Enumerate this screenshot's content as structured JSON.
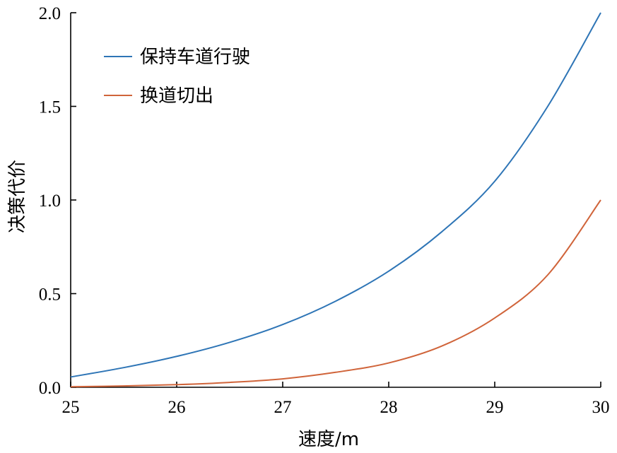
{
  "chart_data": {
    "type": "line",
    "title": "",
    "xlabel": "速度/m",
    "ylabel": "决策代价",
    "xlim": [
      25,
      30
    ],
    "ylim": [
      0,
      2
    ],
    "xticks": [
      25,
      26,
      27,
      28,
      29,
      30
    ],
    "xtick_labels": [
      "25",
      "26",
      "27",
      "28",
      "29",
      "30"
    ],
    "yticks": [
      0,
      0.5,
      1,
      1.5,
      2
    ],
    "ytick_labels": [
      "0.0",
      "0.5",
      "1.0",
      "1.5",
      "2.0"
    ],
    "grid": false,
    "legend_position": "top-left",
    "x": [
      25,
      25.5,
      26,
      26.5,
      27,
      27.5,
      28,
      28.5,
      29,
      29.5,
      30
    ],
    "series": [
      {
        "name": "保持车道行驶",
        "color": "#2e75b6",
        "values": [
          0.055,
          0.105,
          0.165,
          0.24,
          0.335,
          0.46,
          0.62,
          0.83,
          1.1,
          1.5,
          2.0
        ]
      },
      {
        "name": "换道切出",
        "color": "#d0643a",
        "values": [
          0.003,
          0.007,
          0.014,
          0.026,
          0.045,
          0.08,
          0.13,
          0.22,
          0.37,
          0.6,
          1.0
        ]
      }
    ]
  }
}
